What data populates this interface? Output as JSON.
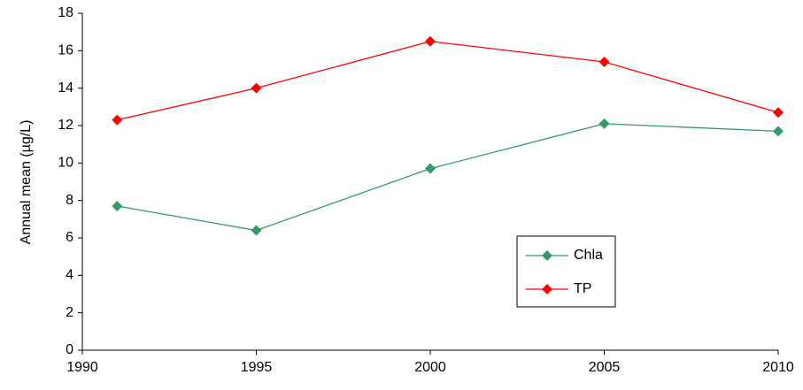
{
  "chart_data": {
    "type": "line",
    "y_label": "Annual mean (µg/L)",
    "x": [
      1991,
      1995,
      2000,
      2005,
      2010
    ],
    "series": [
      {
        "name": "Chla",
        "color": "#339966",
        "values": [
          7.7,
          6.4,
          9.7,
          12.1,
          11.7
        ]
      },
      {
        "name": "TP",
        "color": "#ff0000",
        "values": [
          12.3,
          14.0,
          16.5,
          15.4,
          12.7
        ]
      }
    ],
    "xlim": [
      1990,
      2010
    ],
    "xticks": [
      1990,
      1995,
      2000,
      2005,
      2010
    ],
    "ylim": [
      0,
      18
    ],
    "yticks": [
      0,
      2,
      4,
      6,
      8,
      10,
      12,
      14,
      16,
      18
    ],
    "grid": false
  }
}
